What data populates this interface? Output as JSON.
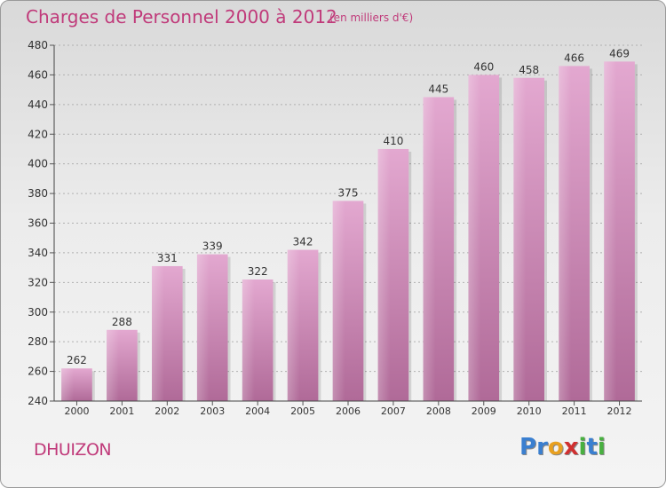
{
  "header": {
    "title": "Charges de Personnel 2000 à 2012",
    "unit": "(en milliers d'€)"
  },
  "footer": {
    "commune": "DHUIZON",
    "logo": {
      "letters": [
        "P",
        "r",
        "o",
        "x",
        "i",
        "t",
        "i"
      ],
      "colors": [
        "#3a7fd0",
        "#3a7fd0",
        "#e8a020",
        "#d03030",
        "#48b040",
        "#3a7fd0",
        "#48b040"
      ]
    }
  },
  "colors": {
    "bar": "#d59bc3",
    "bar_dark": "#b06a98",
    "accent": "#c03a7a",
    "grid": "#aaaaaa"
  },
  "chart_data": {
    "type": "bar",
    "title": "Charges de Personnel 2000 à 2012",
    "subtitle": "(en milliers d'€)",
    "categories": [
      "2000",
      "2001",
      "2002",
      "2003",
      "2004",
      "2005",
      "2006",
      "2007",
      "2008",
      "2009",
      "2010",
      "2011",
      "2012"
    ],
    "values": [
      262,
      288,
      331,
      339,
      322,
      342,
      375,
      410,
      445,
      460,
      458,
      466,
      469
    ],
    "ylim": [
      240,
      480
    ],
    "yticks": [
      240,
      260,
      280,
      300,
      320,
      340,
      360,
      380,
      400,
      420,
      440,
      460,
      480
    ],
    "grid": true,
    "xlabel": "",
    "ylabel": ""
  }
}
